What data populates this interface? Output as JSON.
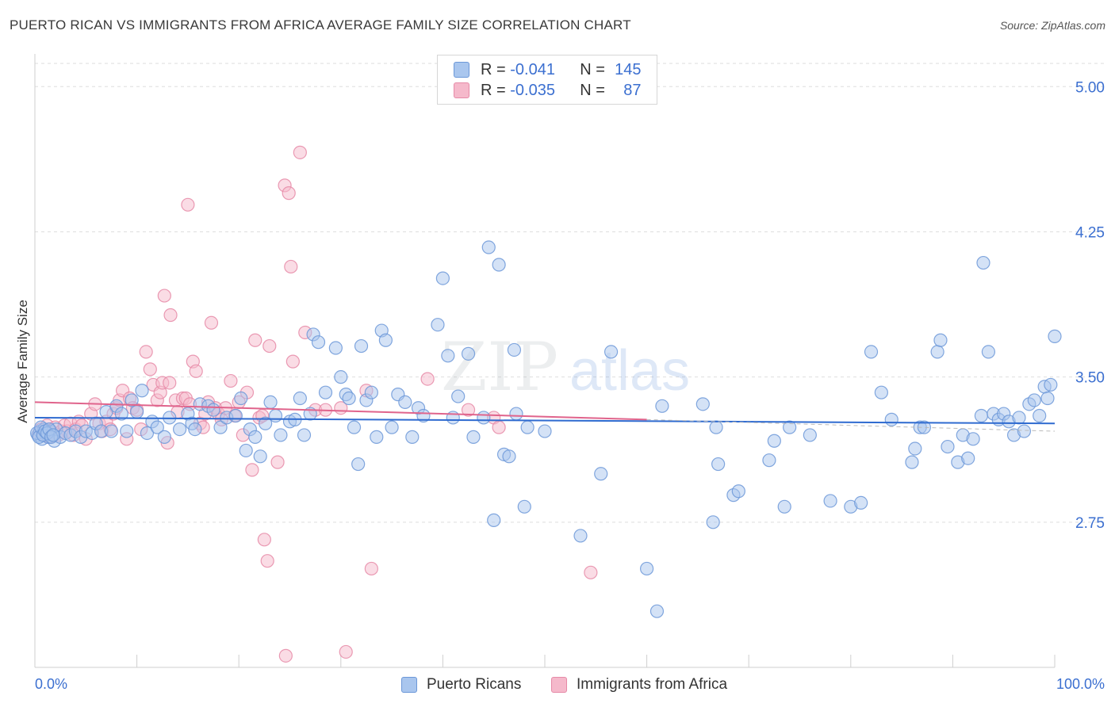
{
  "header": {
    "title": "PUERTO RICAN VS IMMIGRANTS FROM AFRICA AVERAGE FAMILY SIZE CORRELATION CHART",
    "source": "Source: ZipAtlas.com"
  },
  "watermark": {
    "zip": "ZIP",
    "atlas": "atlas"
  },
  "legend": {
    "series": [
      {
        "r_label": "R =",
        "r_value": "-0.041",
        "n_label": "N =",
        "n_value": "145"
      },
      {
        "r_label": "R =",
        "r_value": "-0.035",
        "n_label": "N =",
        "n_value": "87"
      }
    ]
  },
  "colors": {
    "blue_fill": "#a9c6ee",
    "blue_stroke": "#6c98d8",
    "blue_line": "#2f6bd0",
    "pink_fill": "#f5b9cb",
    "pink_stroke": "#e68aa7",
    "pink_line": "#e0648c",
    "axis_text": "#3b6fd0",
    "grid": "#dedede"
  },
  "chart_data": {
    "type": "scatter",
    "title": "PUERTO RICAN VS IMMIGRANTS FROM AFRICA AVERAGE FAMILY SIZE CORRELATION CHART",
    "xlabel": "",
    "ylabel": "Average Family Size",
    "xlim": [
      0,
      100
    ],
    "ylim": [
      2.0,
      5.12
    ],
    "x_tick_labels": [
      "0.0%",
      "100.0%"
    ],
    "y_ticks": [
      2.75,
      3.5,
      4.25,
      5.0
    ],
    "y_tick_labels": [
      "2.75",
      "3.50",
      "4.25",
      "5.00"
    ],
    "grid": true,
    "legend_position": "top-center",
    "series": [
      {
        "name": "Puerto Ricans",
        "trend": [
          [
            0,
            3.29
          ],
          [
            100,
            3.26
          ]
        ],
        "points": [
          [
            0.3,
            3.2
          ],
          [
            0.5,
            3.22
          ],
          [
            0.7,
            3.18
          ],
          [
            0.9,
            3.23
          ],
          [
            1.1,
            3.21
          ],
          [
            1.3,
            3.19
          ],
          [
            1.5,
            3.22
          ],
          [
            1.7,
            3.2
          ],
          [
            1.9,
            3.17
          ],
          [
            2.1,
            3.23
          ],
          [
            2.5,
            3.19
          ],
          [
            3.0,
            3.21
          ],
          [
            3.5,
            3.2
          ],
          [
            4.0,
            3.22
          ],
          [
            4.5,
            3.19
          ],
          [
            5.0,
            3.22
          ],
          [
            5.6,
            3.21
          ],
          [
            6.0,
            3.26
          ],
          [
            6.5,
            3.22
          ],
          [
            7.0,
            3.32
          ],
          [
            7.5,
            3.22
          ],
          [
            8.0,
            3.35
          ],
          [
            8.5,
            3.31
          ],
          [
            9.0,
            3.22
          ],
          [
            9.5,
            3.38
          ],
          [
            10.0,
            3.32
          ],
          [
            10.5,
            3.43
          ],
          [
            11.0,
            3.21
          ],
          [
            11.5,
            3.27
          ],
          [
            12.0,
            3.24
          ],
          [
            12.7,
            3.19
          ],
          [
            13.2,
            3.29
          ],
          [
            14.2,
            3.23
          ],
          [
            15.0,
            3.31
          ],
          [
            15.4,
            3.26
          ],
          [
            15.7,
            3.23
          ],
          [
            16.2,
            3.36
          ],
          [
            17.0,
            3.35
          ],
          [
            17.5,
            3.33
          ],
          [
            18.2,
            3.24
          ],
          [
            18.8,
            3.29
          ],
          [
            19.7,
            3.3
          ],
          [
            20.2,
            3.39
          ],
          [
            20.7,
            3.12
          ],
          [
            21.1,
            3.23
          ],
          [
            21.6,
            3.19
          ],
          [
            22.1,
            3.09
          ],
          [
            22.6,
            3.26
          ],
          [
            23.1,
            3.37
          ],
          [
            23.6,
            3.3
          ],
          [
            24.1,
            3.2
          ],
          [
            25.0,
            3.27
          ],
          [
            25.5,
            3.28
          ],
          [
            26.0,
            3.39
          ],
          [
            26.4,
            3.2
          ],
          [
            27.0,
            3.31
          ],
          [
            27.3,
            3.72
          ],
          [
            27.8,
            3.68
          ],
          [
            28.5,
            3.42
          ],
          [
            29.5,
            3.65
          ],
          [
            30.0,
            3.5
          ],
          [
            30.5,
            3.41
          ],
          [
            30.8,
            3.39
          ],
          [
            31.3,
            3.24
          ],
          [
            31.7,
            3.05
          ],
          [
            32.0,
            3.66
          ],
          [
            32.5,
            3.38
          ],
          [
            33.0,
            3.42
          ],
          [
            33.5,
            3.19
          ],
          [
            34.0,
            3.74
          ],
          [
            34.4,
            3.69
          ],
          [
            35.0,
            3.24
          ],
          [
            35.6,
            3.41
          ],
          [
            36.3,
            3.37
          ],
          [
            37.0,
            3.19
          ],
          [
            37.6,
            3.34
          ],
          [
            38.1,
            3.3
          ],
          [
            39.5,
            3.77
          ],
          [
            40.0,
            4.01
          ],
          [
            40.5,
            3.61
          ],
          [
            41.0,
            3.29
          ],
          [
            41.5,
            3.4
          ],
          [
            42.5,
            3.62
          ],
          [
            43.0,
            3.19
          ],
          [
            44.0,
            3.29
          ],
          [
            44.5,
            4.17
          ],
          [
            45.0,
            2.76
          ],
          [
            45.5,
            4.08
          ],
          [
            46.0,
            3.1
          ],
          [
            46.5,
            3.09
          ],
          [
            47.0,
            3.64
          ],
          [
            47.2,
            3.31
          ],
          [
            48.0,
            2.83
          ],
          [
            48.3,
            3.24
          ],
          [
            50.0,
            3.22
          ],
          [
            53.5,
            2.68
          ],
          [
            55.5,
            3.0
          ],
          [
            56.5,
            3.63
          ],
          [
            60.0,
            2.51
          ],
          [
            61.0,
            2.29
          ],
          [
            61.5,
            3.35
          ],
          [
            65.5,
            3.36
          ],
          [
            66.5,
            2.75
          ],
          [
            66.8,
            3.24
          ],
          [
            67.0,
            3.05
          ],
          [
            68.5,
            2.89
          ],
          [
            69.0,
            2.91
          ],
          [
            72.0,
            3.07
          ],
          [
            72.5,
            3.17
          ],
          [
            73.5,
            2.83
          ],
          [
            74.0,
            3.24
          ],
          [
            76.0,
            3.2
          ],
          [
            78.0,
            2.86
          ],
          [
            80.0,
            2.83
          ],
          [
            81.0,
            2.85
          ],
          [
            82.0,
            3.63
          ],
          [
            83.0,
            3.42
          ],
          [
            84.0,
            3.28
          ],
          [
            86.0,
            3.06
          ],
          [
            86.3,
            3.13
          ],
          [
            86.8,
            3.24
          ],
          [
            87.2,
            3.24
          ],
          [
            88.5,
            3.63
          ],
          [
            88.8,
            3.69
          ],
          [
            89.5,
            3.14
          ],
          [
            90.5,
            3.06
          ],
          [
            91.0,
            3.2
          ],
          [
            91.5,
            3.08
          ],
          [
            92.0,
            3.18
          ],
          [
            92.8,
            3.3
          ],
          [
            93.5,
            3.63
          ],
          [
            94.0,
            3.31
          ],
          [
            94.5,
            3.28
          ],
          [
            95.0,
            3.31
          ],
          [
            95.5,
            3.27
          ],
          [
            96.0,
            3.2
          ],
          [
            96.5,
            3.29
          ],
          [
            97.0,
            3.22
          ],
          [
            97.5,
            3.36
          ],
          [
            98.0,
            3.38
          ],
          [
            98.5,
            3.3
          ],
          [
            99.0,
            3.45
          ],
          [
            100.0,
            3.71
          ],
          [
            99.3,
            3.39
          ],
          [
            99.6,
            3.46
          ],
          [
            93.0,
            4.09
          ],
          [
            0.2,
            3.21
          ],
          [
            0.4,
            3.19
          ],
          [
            0.6,
            3.24
          ],
          [
            0.8,
            3.2
          ],
          [
            1.0,
            3.22
          ],
          [
            1.2,
            3.21
          ],
          [
            1.4,
            3.23
          ],
          [
            1.6,
            3.19
          ],
          [
            1.8,
            3.2
          ]
        ]
      },
      {
        "name": "Immigrants from Africa",
        "trend": [
          [
            0,
            3.37
          ],
          [
            60,
            3.28
          ]
        ],
        "points": [
          [
            0.4,
            3.21
          ],
          [
            0.6,
            3.23
          ],
          [
            0.8,
            3.22
          ],
          [
            1.0,
            3.2
          ],
          [
            1.2,
            3.25
          ],
          [
            1.4,
            3.19
          ],
          [
            1.6,
            3.22
          ],
          [
            1.8,
            3.21
          ],
          [
            2.0,
            3.24
          ],
          [
            2.3,
            3.2
          ],
          [
            2.6,
            3.22
          ],
          [
            2.9,
            3.25
          ],
          [
            3.2,
            3.22
          ],
          [
            3.5,
            3.26
          ],
          [
            3.8,
            3.2
          ],
          [
            4.0,
            3.23
          ],
          [
            4.3,
            3.27
          ],
          [
            4.6,
            3.25
          ],
          [
            5.0,
            3.18
          ],
          [
            5.5,
            3.31
          ],
          [
            5.9,
            3.36
          ],
          [
            6.3,
            3.26
          ],
          [
            6.6,
            3.22
          ],
          [
            7.0,
            3.27
          ],
          [
            7.4,
            3.23
          ],
          [
            7.7,
            3.31
          ],
          [
            8.0,
            3.34
          ],
          [
            8.3,
            3.38
          ],
          [
            8.6,
            3.43
          ],
          [
            9.0,
            3.18
          ],
          [
            9.3,
            3.39
          ],
          [
            9.6,
            3.34
          ],
          [
            10.0,
            3.33
          ],
          [
            10.4,
            3.23
          ],
          [
            10.9,
            3.63
          ],
          [
            11.3,
            3.54
          ],
          [
            11.6,
            3.46
          ],
          [
            12.0,
            3.38
          ],
          [
            12.3,
            3.42
          ],
          [
            12.5,
            3.47
          ],
          [
            12.7,
            3.92
          ],
          [
            13.0,
            3.16
          ],
          [
            13.2,
            3.47
          ],
          [
            13.3,
            3.82
          ],
          [
            13.8,
            3.38
          ],
          [
            14.0,
            3.32
          ],
          [
            14.5,
            3.39
          ],
          [
            14.8,
            3.39
          ],
          [
            15.0,
            4.39
          ],
          [
            15.2,
            3.36
          ],
          [
            15.5,
            3.58
          ],
          [
            15.8,
            3.53
          ],
          [
            16.2,
            3.26
          ],
          [
            16.5,
            3.24
          ],
          [
            16.7,
            3.31
          ],
          [
            17.0,
            3.37
          ],
          [
            17.3,
            3.78
          ],
          [
            17.7,
            3.34
          ],
          [
            18.0,
            3.31
          ],
          [
            18.3,
            3.28
          ],
          [
            18.7,
            3.34
          ],
          [
            19.2,
            3.48
          ],
          [
            19.6,
            3.3
          ],
          [
            20.0,
            3.37
          ],
          [
            20.4,
            3.2
          ],
          [
            20.8,
            3.42
          ],
          [
            21.3,
            3.02
          ],
          [
            21.6,
            3.69
          ],
          [
            22.0,
            3.29
          ],
          [
            22.3,
            3.3
          ],
          [
            22.5,
            2.66
          ],
          [
            22.8,
            2.55
          ],
          [
            23.0,
            3.66
          ],
          [
            23.8,
            3.06
          ],
          [
            24.5,
            4.49
          ],
          [
            24.9,
            4.45
          ],
          [
            24.6,
            2.06
          ],
          [
            25.1,
            4.07
          ],
          [
            25.3,
            3.58
          ],
          [
            26.0,
            4.66
          ],
          [
            26.5,
            3.73
          ],
          [
            27.5,
            3.33
          ],
          [
            28.5,
            3.33
          ],
          [
            30.0,
            3.34
          ],
          [
            30.5,
            2.08
          ],
          [
            32.5,
            3.43
          ],
          [
            33.0,
            2.51
          ],
          [
            38.5,
            3.49
          ],
          [
            42.5,
            3.33
          ],
          [
            45.0,
            3.29
          ],
          [
            45.5,
            3.24
          ],
          [
            54.5,
            2.49
          ]
        ]
      }
    ]
  },
  "bottom_legend": {
    "series_1": "Puerto Ricans",
    "series_2": "Immigrants from Africa"
  }
}
